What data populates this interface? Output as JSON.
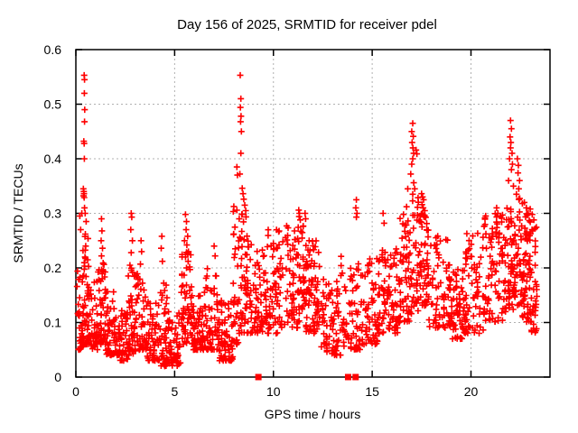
{
  "chart_data": {
    "type": "scatter",
    "title": "Day 156 of 2025, SRMTID for receiver pdel",
    "xlabel": "GPS time / hours",
    "ylabel": "SRMTID / TECUs",
    "xlim": [
      0,
      24
    ],
    "ylim": [
      0,
      0.6
    ],
    "grid": true,
    "grid_style": "dashed",
    "legend": "none",
    "x_ticks": [
      {
        "v": 0,
        "label": "0"
      },
      {
        "v": 5,
        "label": "5"
      },
      {
        "v": 10,
        "label": "10"
      },
      {
        "v": 15,
        "label": "15"
      },
      {
        "v": 20,
        "label": "20"
      }
    ],
    "y_ticks": [
      {
        "v": 0.0,
        "label": "0"
      },
      {
        "v": 0.1,
        "label": "0.1"
      },
      {
        "v": 0.2,
        "label": "0.2"
      },
      {
        "v": 0.3,
        "label": "0.3"
      },
      {
        "v": 0.4,
        "label": "0.4"
      },
      {
        "v": 0.5,
        "label": "0.5"
      },
      {
        "v": 0.6,
        "label": "0.6"
      }
    ],
    "marker": {
      "shape": "plus",
      "color": "#ff0000",
      "size": 7
    },
    "density_scale": 1.45,
    "seed": 7,
    "series": [
      {
        "name": "srmtid-points",
        "marker": "plus",
        "clusters": [
          [
            0.05,
            0.35,
            22,
            0.05,
            0.22,
            2.0
          ],
          [
            0.35,
            0.65,
            30,
            0.06,
            0.26,
            1.6
          ],
          [
            0.65,
            1.1,
            32,
            0.05,
            0.18,
            1.8
          ],
          [
            1.1,
            1.5,
            34,
            0.06,
            0.22,
            1.6
          ],
          [
            1.5,
            2.2,
            46,
            0.04,
            0.16,
            1.8
          ],
          [
            2.2,
            2.65,
            28,
            0.03,
            0.13,
            1.8
          ],
          [
            2.65,
            3.1,
            32,
            0.04,
            0.2,
            1.8
          ],
          [
            3.1,
            3.6,
            32,
            0.05,
            0.19,
            1.8
          ],
          [
            3.6,
            4.2,
            38,
            0.03,
            0.14,
            1.8
          ],
          [
            4.2,
            4.65,
            28,
            0.02,
            0.18,
            1.8
          ],
          [
            4.65,
            5.3,
            38,
            0.02,
            0.12,
            1.6
          ],
          [
            5.3,
            5.9,
            40,
            0.06,
            0.24,
            1.5
          ],
          [
            5.9,
            6.5,
            38,
            0.05,
            0.15,
            1.8
          ],
          [
            6.5,
            7.2,
            40,
            0.05,
            0.2,
            1.9
          ],
          [
            7.2,
            7.95,
            46,
            0.03,
            0.15,
            1.8
          ],
          [
            7.95,
            8.25,
            22,
            0.06,
            0.32,
            1.5
          ],
          [
            8.25,
            8.65,
            26,
            0.08,
            0.3,
            1.3
          ],
          [
            8.65,
            9.5,
            48,
            0.08,
            0.26,
            1.5
          ],
          [
            9.5,
            10.5,
            55,
            0.08,
            0.27,
            1.4
          ],
          [
            10.5,
            11.6,
            58,
            0.09,
            0.28,
            1.3
          ],
          [
            11.6,
            12.4,
            50,
            0.08,
            0.25,
            1.5
          ],
          [
            12.4,
            13.4,
            50,
            0.04,
            0.18,
            1.6
          ],
          [
            13.4,
            14.45,
            48,
            0.05,
            0.23,
            1.6
          ],
          [
            14.45,
            15.4,
            50,
            0.06,
            0.22,
            1.5
          ],
          [
            15.4,
            16.3,
            50,
            0.08,
            0.24,
            1.5
          ],
          [
            16.3,
            17.0,
            44,
            0.1,
            0.3,
            1.4
          ],
          [
            17.0,
            17.45,
            26,
            0.12,
            0.33,
            1.3
          ],
          [
            17.45,
            17.85,
            30,
            0.13,
            0.3,
            1.3
          ],
          [
            17.85,
            19.05,
            56,
            0.09,
            0.26,
            1.5
          ],
          [
            19.05,
            19.6,
            32,
            0.07,
            0.2,
            1.6
          ],
          [
            19.6,
            20.65,
            52,
            0.08,
            0.27,
            1.4
          ],
          [
            20.65,
            21.65,
            56,
            0.1,
            0.3,
            1.4
          ],
          [
            21.65,
            22.15,
            38,
            0.12,
            0.31,
            1.3
          ],
          [
            22.15,
            22.55,
            28,
            0.13,
            0.33,
            1.3
          ],
          [
            22.55,
            23.05,
            44,
            0.1,
            0.3,
            1.3
          ],
          [
            23.05,
            23.35,
            22,
            0.08,
            0.28,
            1.4
          ]
        ],
        "peaks": [
          [
            0.42,
            0.553
          ],
          [
            0.44,
            0.545
          ],
          [
            0.43,
            0.52
          ],
          [
            0.45,
            0.49
          ],
          [
            0.44,
            0.468
          ],
          [
            0.4,
            0.432
          ],
          [
            0.42,
            0.428
          ],
          [
            0.43,
            0.4
          ],
          [
            0.38,
            0.345
          ],
          [
            0.4,
            0.34
          ],
          [
            0.41,
            0.336
          ],
          [
            0.39,
            0.332
          ],
          [
            0.42,
            0.329
          ],
          [
            0.44,
            0.31
          ],
          [
            0.47,
            0.3
          ],
          [
            0.3,
            0.3
          ],
          [
            0.52,
            0.285
          ],
          [
            0.48,
            0.262
          ],
          [
            0.5,
            0.24
          ],
          [
            0.46,
            0.22
          ],
          [
            0.24,
            0.27
          ],
          [
            0.2,
            0.295
          ],
          [
            1.3,
            0.29
          ],
          [
            1.32,
            0.268
          ],
          [
            1.28,
            0.25
          ],
          [
            1.35,
            0.236
          ],
          [
            1.3,
            0.222
          ],
          [
            1.38,
            0.208
          ],
          [
            2.8,
            0.3
          ],
          [
            2.83,
            0.293
          ],
          [
            2.78,
            0.27
          ],
          [
            2.86,
            0.25
          ],
          [
            2.8,
            0.228
          ],
          [
            2.74,
            0.205
          ],
          [
            3.3,
            0.25
          ],
          [
            3.33,
            0.23
          ],
          [
            3.27,
            0.207
          ],
          [
            4.35,
            0.258
          ],
          [
            4.32,
            0.236
          ],
          [
            4.38,
            0.212
          ],
          [
            5.55,
            0.298
          ],
          [
            5.6,
            0.285
          ],
          [
            5.58,
            0.27
          ],
          [
            5.66,
            0.258
          ],
          [
            5.5,
            0.25
          ],
          [
            5.62,
            0.242
          ],
          [
            5.7,
            0.23
          ],
          [
            5.55,
            0.22
          ],
          [
            5.68,
            0.212
          ],
          [
            5.6,
            0.2
          ],
          [
            7.0,
            0.24
          ],
          [
            7.05,
            0.222
          ],
          [
            8.15,
            0.385
          ],
          [
            8.18,
            0.37
          ],
          [
            8.32,
            0.553
          ],
          [
            8.35,
            0.51
          ],
          [
            8.33,
            0.494
          ],
          [
            8.36,
            0.478
          ],
          [
            8.34,
            0.468
          ],
          [
            8.38,
            0.45
          ],
          [
            8.35,
            0.41
          ],
          [
            8.3,
            0.372
          ],
          [
            8.42,
            0.346
          ],
          [
            8.46,
            0.336
          ],
          [
            8.5,
            0.326
          ],
          [
            8.55,
            0.315
          ],
          [
            8.6,
            0.305
          ],
          [
            8.4,
            0.298
          ],
          [
            8.27,
            0.29
          ],
          [
            11.28,
            0.306
          ],
          [
            11.32,
            0.3
          ],
          [
            11.3,
            0.294
          ],
          [
            11.36,
            0.288
          ],
          [
            11.6,
            0.3
          ],
          [
            11.63,
            0.29
          ],
          [
            14.2,
            0.325
          ],
          [
            14.17,
            0.31
          ],
          [
            14.23,
            0.3
          ],
          [
            14.2,
            0.293
          ],
          [
            15.55,
            0.3
          ],
          [
            15.6,
            0.282
          ],
          [
            16.8,
            0.345
          ],
          [
            16.74,
            0.312
          ],
          [
            17.05,
            0.465
          ],
          [
            17.0,
            0.45
          ],
          [
            17.08,
            0.441
          ],
          [
            17.02,
            0.43
          ],
          [
            17.06,
            0.42
          ],
          [
            17.1,
            0.41
          ],
          [
            17.05,
            0.4
          ],
          [
            17.0,
            0.39
          ],
          [
            17.22,
            0.416
          ],
          [
            17.26,
            0.409
          ],
          [
            16.95,
            0.372
          ],
          [
            17.1,
            0.356
          ],
          [
            17.15,
            0.345
          ],
          [
            17.05,
            0.335
          ],
          [
            17.5,
            0.336
          ],
          [
            17.55,
            0.33
          ],
          [
            17.6,
            0.325
          ],
          [
            17.52,
            0.316
          ],
          [
            17.58,
            0.31
          ],
          [
            17.66,
            0.305
          ],
          [
            17.55,
            0.3
          ],
          [
            17.62,
            0.294
          ],
          [
            21.3,
            0.31
          ],
          [
            21.36,
            0.3
          ],
          [
            22.0,
            0.47
          ],
          [
            22.05,
            0.455
          ],
          [
            21.98,
            0.44
          ],
          [
            22.02,
            0.43
          ],
          [
            22.0,
            0.42
          ],
          [
            22.08,
            0.41
          ],
          [
            21.95,
            0.4
          ],
          [
            22.1,
            0.39
          ],
          [
            22.05,
            0.38
          ],
          [
            21.9,
            0.36
          ],
          [
            22.15,
            0.35
          ],
          [
            22.35,
            0.4
          ],
          [
            22.4,
            0.388
          ],
          [
            22.38,
            0.374
          ],
          [
            22.46,
            0.36
          ],
          [
            22.42,
            0.345
          ],
          [
            22.3,
            0.335
          ],
          [
            22.6,
            0.318
          ],
          [
            22.7,
            0.32
          ],
          [
            22.8,
            0.31
          ],
          [
            22.9,
            0.3
          ],
          [
            23.0,
            0.308
          ],
          [
            23.1,
            0.298
          ],
          [
            23.18,
            0.288
          ],
          [
            23.24,
            0.272
          ]
        ]
      },
      {
        "name": "zero-flags",
        "marker": "square",
        "points": [
          [
            9.24,
            0
          ],
          [
            13.78,
            0
          ],
          [
            14.16,
            0
          ]
        ]
      }
    ]
  },
  "colors": {
    "marker": "#ff0000",
    "grid": "#b0b0b0",
    "axis": "#000000",
    "background": "#ffffff",
    "text": "#000000"
  }
}
